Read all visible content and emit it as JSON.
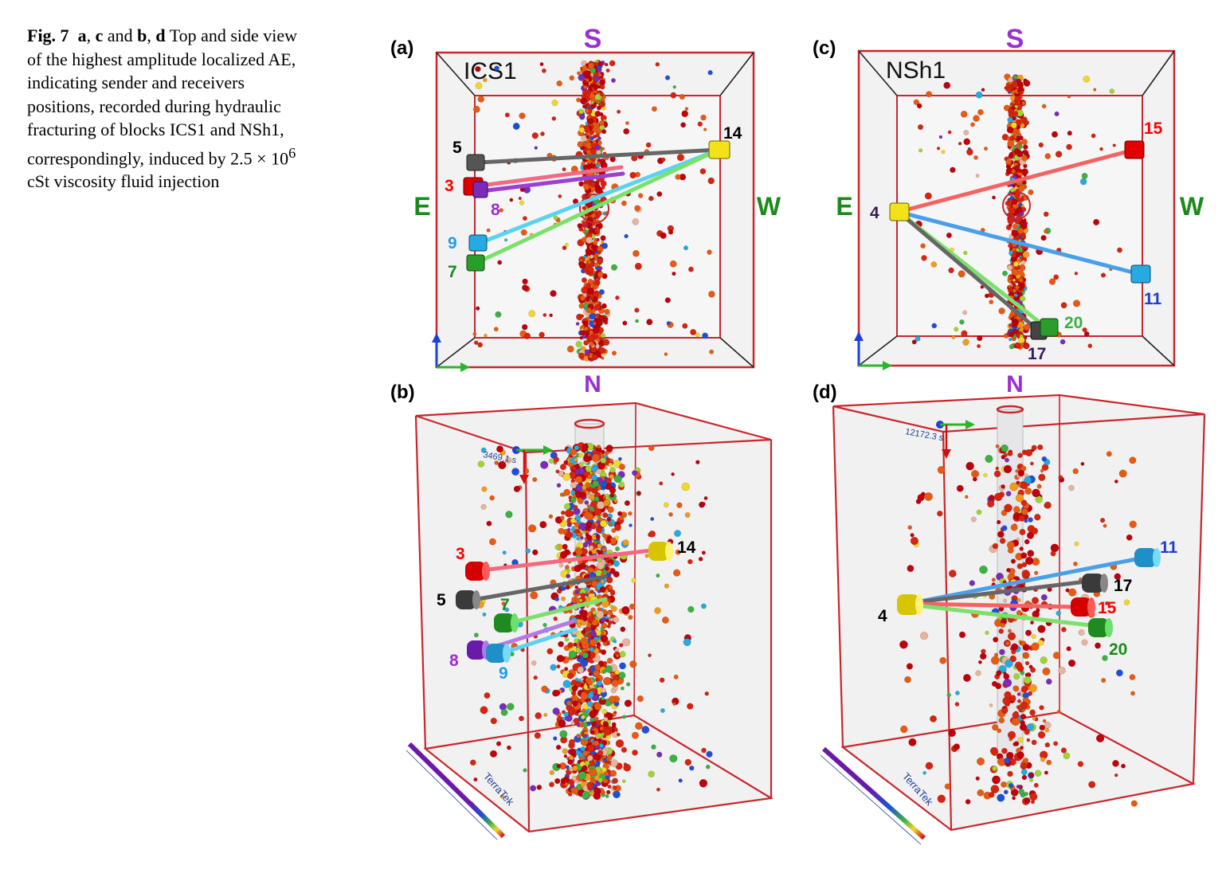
{
  "caption": {
    "fig_label": "Fig. 7",
    "p_a": "a",
    "comma1": ", ",
    "p_c": "c",
    "and_word": " and ",
    "p_b": "b",
    "comma2": ", ",
    "p_d": "d",
    "text_before_exp": " Top and side view of the highest amplitude localized AE, indicating sender and receivers positions, recorded during hydraulic fracturing of blocks ICS1 and NSh1, correspondingly, induced by 2.5 × 10",
    "exponent": "6",
    "text_after_exp": " cSt viscosity fluid injection"
  },
  "panels": {
    "a": {
      "label": "(a)",
      "block": "ICS1",
      "dir_top": "S",
      "dir_bottom": "N",
      "dir_left": "E",
      "dir_right": "W",
      "sensors": [
        {
          "id": "5",
          "color": "#555555",
          "label_color": "#000000"
        },
        {
          "id": "3",
          "color": "#e00000",
          "label_color": "#ff0000"
        },
        {
          "id": "8",
          "color": "#7a2bb8",
          "label_color": "#9b30d0"
        },
        {
          "id": "9",
          "color": "#27a9e1",
          "label_color": "#1e9be8"
        },
        {
          "id": "7",
          "color": "#2a9d2a",
          "label_color": "#1a8a1a"
        },
        {
          "id": "14",
          "color": "#f2e21a",
          "label_color": "#000000"
        }
      ]
    },
    "c": {
      "label": "(c)",
      "block": "NSh1",
      "dir_top": "S",
      "dir_bottom": "N",
      "dir_left": "E",
      "dir_right": "W",
      "sensors": [
        {
          "id": "4",
          "color": "#f2e21a",
          "label_color": "#3a1a5a"
        },
        {
          "id": "15",
          "color": "#e00000",
          "label_color": "#ff0000"
        },
        {
          "id": "11",
          "color": "#27a9e1",
          "label_color": "#1a3fd0"
        },
        {
          "id": "20",
          "color": "#2a9d2a",
          "label_color": "#3cb043"
        },
        {
          "id": "17",
          "color": "#444444",
          "label_color": "#3a1a5a"
        }
      ]
    },
    "b": {
      "label": "(b)",
      "time_readout": "3469.1 s",
      "watermark": "TerraTek",
      "sensors": [
        {
          "id": "3",
          "label_color": "#ff0000"
        },
        {
          "id": "5",
          "label_color": "#000000"
        },
        {
          "id": "7",
          "label_color": "#1a8a1a"
        },
        {
          "id": "8",
          "label_color": "#9b30d0"
        },
        {
          "id": "9",
          "label_color": "#1e9be8"
        },
        {
          "id": "14",
          "label_color": "#000000"
        }
      ]
    },
    "d": {
      "label": "(d)",
      "time_readout": "12172.3 s",
      "watermark": "TerraTek",
      "sensors": [
        {
          "id": "11",
          "label_color": "#1a3fd0"
        },
        {
          "id": "17",
          "label_color": "#000000"
        },
        {
          "id": "4",
          "label_color": "#000000"
        },
        {
          "id": "15",
          "label_color": "#ff0000"
        },
        {
          "id": "20",
          "label_color": "#1a8a1a"
        }
      ]
    }
  },
  "colors": {
    "frame": "#c8262c",
    "direction_ns": "#9b30d0",
    "direction_ew": "#1a8a1a",
    "event_palette": [
      "#c0000a",
      "#d8230f",
      "#e85a12",
      "#f39a1a",
      "#f3d62a",
      "#9fd431",
      "#3cb043",
      "#27a9e1",
      "#1f4fd8",
      "#7a2bb8",
      "#e8b49a"
    ]
  }
}
